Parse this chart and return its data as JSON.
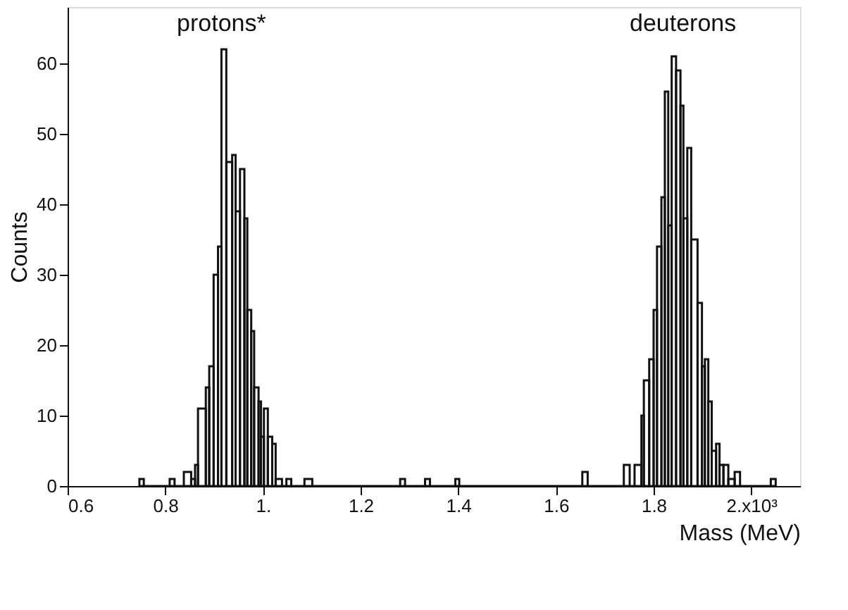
{
  "chart_data": {
    "type": "histogram",
    "xlabel": "Mass  (MeV)",
    "ylabel": "Counts",
    "color": "#111111",
    "bins": [
      0.747,
      0.756,
      0.809,
      0.819,
      0.838,
      0.853,
      0.861,
      0.867,
      0.883,
      0.89,
      0.899,
      0.908,
      0.915,
      0.925,
      0.937,
      0.944,
      0.953,
      0.962,
      0.968,
      0.976,
      0.982,
      0.991,
      0.996,
      1.002,
      1.01,
      1.019,
      1.026,
      1.039,
      1.048,
      1.058,
      1.085,
      1.101,
      1.281,
      1.291,
      1.332,
      1.342,
      1.394,
      1.402,
      1.654,
      1.665,
      1.739,
      1.751,
      1.761,
      1.775,
      1.78,
      1.791,
      1.8,
      1.807,
      1.816,
      1.823,
      1.83,
      1.837,
      1.846,
      1.855,
      1.861,
      1.869,
      1.877,
      1.89,
      1.899,
      1.905,
      1.912,
      1.919,
      1.928,
      1.935,
      1.943,
      1.953,
      1.966,
      1.977,
      2.04,
      2.05
    ],
    "values": [
      1,
      0,
      1,
      0,
      2,
      1,
      3,
      11,
      14,
      17,
      30,
      34,
      62,
      46,
      47,
      39,
      45,
      38,
      25,
      22,
      14,
      12,
      7,
      11,
      7,
      6,
      1,
      0,
      1,
      0,
      1,
      0,
      1,
      0,
      1,
      0,
      1,
      0,
      2,
      0,
      3,
      0,
      3,
      10,
      15,
      18,
      25,
      34,
      41,
      56,
      37,
      61,
      59,
      54,
      38,
      48,
      35,
      26,
      17,
      18,
      12,
      5,
      6,
      3,
      3,
      1,
      2,
      0,
      1
    ],
    "xlim": [
      0.6,
      2.1
    ],
    "xticks": [
      0.6,
      0.8,
      {
        "value": 1.0,
        "label": "1."
      },
      1.2,
      1.4,
      1.6,
      1.8,
      {
        "value": 2.0,
        "label": "2.x10³"
      }
    ],
    "ylim": [
      0,
      68
    ],
    "yticks": [
      0,
      10,
      20,
      30,
      40,
      50,
      60
    ],
    "annotations": [
      "protons*",
      "deuterons"
    ]
  }
}
